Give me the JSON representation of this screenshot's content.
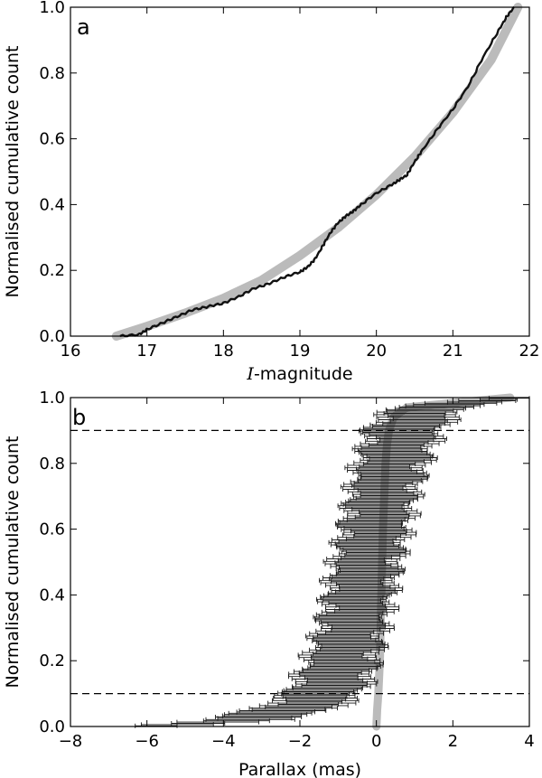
{
  "chart_data": [
    {
      "type": "line",
      "panel_label": "a",
      "xlabel_italic": "I",
      "xlabel_rest": "-magnitude",
      "ylabel": "Normalised cumulative count",
      "xlim": [
        16,
        22
      ],
      "ylim": [
        0,
        1.0
      ],
      "x_ticks": [
        "16",
        "17",
        "18",
        "19",
        "20",
        "21",
        "22"
      ],
      "y_ticks": [
        "0.0",
        "0.2",
        "0.4",
        "0.6",
        "0.8",
        "1.0"
      ],
      "grid": false,
      "legend": "none",
      "series": [
        {
          "style": "band",
          "color": "#bbbbbb",
          "x": [
            16.6,
            17.0,
            17.5,
            18.0,
            18.5,
            19.0,
            19.5,
            20.0,
            20.5,
            21.0,
            21.5,
            21.85
          ],
          "y": [
            0.0,
            0.03,
            0.07,
            0.115,
            0.17,
            0.245,
            0.33,
            0.43,
            0.545,
            0.68,
            0.84,
            1.0
          ]
        },
        {
          "style": "line",
          "color": "#111111",
          "x": [
            16.65,
            16.9,
            17.0,
            17.2,
            17.4,
            17.6,
            17.8,
            18.0,
            18.2,
            18.4,
            18.6,
            18.8,
            19.0,
            19.1,
            19.2,
            19.3,
            19.4,
            19.5,
            19.6,
            19.7,
            19.8,
            20.0,
            20.2,
            20.3,
            20.4,
            20.5,
            20.6,
            20.8,
            21.0,
            21.2,
            21.4,
            21.6,
            21.7,
            21.8
          ],
          "y": [
            0.0,
            0.005,
            0.02,
            0.04,
            0.06,
            0.08,
            0.09,
            0.1,
            0.12,
            0.145,
            0.16,
            0.18,
            0.195,
            0.21,
            0.235,
            0.275,
            0.315,
            0.345,
            0.365,
            0.38,
            0.4,
            0.435,
            0.46,
            0.475,
            0.49,
            0.53,
            0.565,
            0.63,
            0.69,
            0.76,
            0.85,
            0.93,
            0.97,
            1.0
          ]
        }
      ]
    },
    {
      "type": "scatter",
      "panel_label": "b",
      "xlabel": "Parallax (mas)",
      "ylabel": "Normalised cumulative count",
      "xlim": [
        -8,
        4
      ],
      "ylim": [
        0,
        1.0
      ],
      "x_ticks": [
        "−8",
        "−6",
        "−4",
        "−2",
        "0",
        "2",
        "4"
      ],
      "y_ticks": [
        "0.0",
        "0.2",
        "0.4",
        "0.6",
        "0.8",
        "1.0"
      ],
      "grid": false,
      "legend": "none",
      "reference_lines": [
        0.1,
        0.9
      ],
      "observed_parallax_quantiles": {
        "y": [
          0.0,
          0.02,
          0.05,
          0.1,
          0.15,
          0.2,
          0.3,
          0.4,
          0.5,
          0.6,
          0.7,
          0.8,
          0.85,
          0.9,
          0.95,
          0.98,
          1.0
        ],
        "x": [
          -6.0,
          -3.5,
          -2.2,
          -1.4,
          -1.1,
          -0.9,
          -0.65,
          -0.45,
          -0.25,
          -0.05,
          0.15,
          0.4,
          0.55,
          0.7,
          1.1,
          1.8,
          3.6
        ],
        "error_halfwidth_mas": [
          0.7,
          1.0,
          1.0,
          0.9,
          0.9,
          0.85,
          0.8,
          0.8,
          0.8,
          0.8,
          0.8,
          0.85,
          0.85,
          0.9,
          0.9,
          0.9,
          0.4
        ]
      },
      "model_curve": {
        "color": "#bbbbbb",
        "y": [
          0.0,
          0.05,
          0.1,
          0.2,
          0.4,
          0.6,
          0.8,
          0.86,
          0.9,
          0.94,
          0.97,
          1.0
        ],
        "x": [
          0.0,
          0.02,
          0.05,
          0.09,
          0.13,
          0.17,
          0.24,
          0.28,
          0.33,
          0.45,
          0.8,
          3.5
        ]
      }
    }
  ]
}
